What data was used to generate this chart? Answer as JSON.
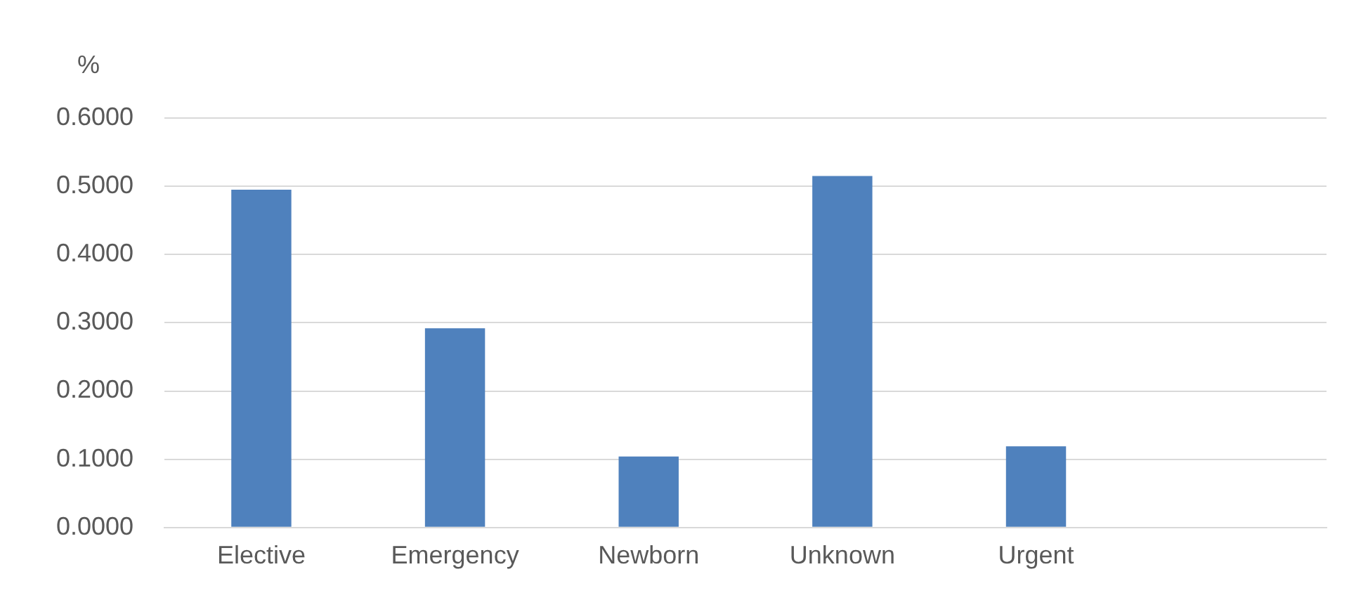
{
  "chart_data": {
    "type": "bar",
    "ylabel": "%",
    "categories": [
      "Elective",
      "Emergency",
      "Newborn",
      "Unknown",
      "Urgent",
      null
    ],
    "values": [
      0.495,
      0.292,
      0.104,
      0.515,
      0.119,
      null
    ],
    "color": "#4f81bd",
    "ylim": [
      0,
      0.6
    ],
    "yticks": [
      {
        "value": 0,
        "label": "0.0000"
      },
      {
        "value": 0.1,
        "label": "0.1000"
      },
      {
        "value": 0.2,
        "label": "0.2000"
      },
      {
        "value": 0.3,
        "label": "0.3000"
      },
      {
        "value": 0.4,
        "label": "0.4000"
      },
      {
        "value": 0.5,
        "label": "0.5000"
      },
      {
        "value": 0.6,
        "label": "0.6000"
      }
    ],
    "grid": "y",
    "legend": false
  }
}
